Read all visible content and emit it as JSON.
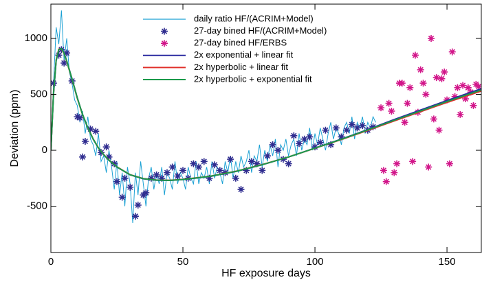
{
  "chart_data": {
    "type": "line",
    "x_label": "HF exposure days",
    "y_label": "Deviation (ppm)",
    "xlim": [
      0,
      163
    ],
    "ylim": [
      -914,
      1307
    ],
    "xticks": [
      0,
      50,
      100,
      150
    ],
    "yticks": [
      -500,
      0,
      500,
      1000
    ],
    "legend": "upper-center",
    "series": [
      {
        "name": "daily ratio HF/(ACRIM+Model)",
        "kind": "line",
        "color": "#1ba1d4",
        "x": [
          0,
          1,
          2,
          3,
          4,
          5,
          6,
          7,
          8,
          9,
          10,
          11,
          12,
          13,
          14,
          15,
          16,
          17,
          18,
          19,
          20,
          21,
          22,
          23,
          24,
          25,
          26,
          27,
          28,
          29,
          30,
          31,
          32,
          33,
          34,
          35,
          36,
          37,
          38,
          39,
          40,
          41,
          42,
          43,
          44,
          45,
          46,
          47,
          48,
          49,
          50,
          51,
          52,
          53,
          54,
          55,
          56,
          57,
          58,
          59,
          60,
          61,
          62,
          63,
          64,
          65,
          66,
          67,
          68,
          69,
          70,
          71,
          72,
          73,
          74,
          75,
          76,
          77,
          78,
          79,
          80,
          81,
          82,
          83,
          84,
          85,
          86,
          87,
          88,
          89,
          90,
          91,
          92,
          93,
          94,
          95,
          96,
          97,
          98,
          99,
          100,
          101,
          102,
          103,
          104,
          105,
          106,
          107,
          108,
          109,
          110,
          111,
          112,
          113,
          114,
          115,
          116,
          117,
          118,
          119,
          120,
          121,
          122,
          123
        ],
        "values": [
          0,
          600,
          1100,
          950,
          1250,
          800,
          1000,
          700,
          600,
          450,
          400,
          250,
          350,
          150,
          300,
          100,
          50,
          -50,
          150,
          -100,
          -50,
          -200,
          0,
          -150,
          -350,
          -100,
          -400,
          -200,
          -500,
          -150,
          -300,
          -650,
          -200,
          -400,
          -100,
          -300,
          -500,
          -250,
          -150,
          -350,
          -200,
          -300,
          -150,
          -400,
          -200,
          -250,
          -350,
          -100,
          -300,
          -200,
          -250,
          -350,
          -150,
          -250,
          -300,
          -100,
          -300,
          -200,
          -250,
          -150,
          -300,
          -100,
          -250,
          -150,
          -200,
          -300,
          -100,
          -200,
          -50,
          -250,
          -100,
          -200,
          -50,
          -150,
          -100,
          0,
          -200,
          -50,
          -100,
          50,
          -150,
          0,
          -100,
          50,
          -50,
          100,
          -150,
          50,
          0,
          100,
          -50,
          50,
          100,
          -50,
          150,
          0,
          100,
          50,
          200,
          0,
          150,
          50,
          200,
          100,
          0,
          150,
          250,
          100,
          200,
          150,
          50,
          200,
          250,
          150,
          300,
          100,
          250,
          200,
          300,
          150,
          250,
          200,
          300,
          250
        ]
      },
      {
        "name": "27-day bined HF/(ACRIM+Model)",
        "kind": "scatter",
        "color": "#2f2c8f",
        "x": [
          1,
          3,
          4,
          5,
          6,
          8,
          10,
          11,
          12,
          13,
          15,
          17,
          19,
          21,
          22,
          24,
          25,
          27,
          28,
          30,
          32,
          33,
          35,
          36,
          38,
          40,
          42,
          44,
          46,
          48,
          50,
          52,
          54,
          56,
          58,
          60,
          62,
          64,
          66,
          68,
          70,
          72,
          74,
          76,
          78,
          80,
          82,
          84,
          86,
          88,
          90,
          92,
          94,
          96,
          98,
          100,
          102,
          104,
          106,
          108,
          110,
          112,
          114,
          116,
          118,
          120,
          122
        ],
        "values": [
          600,
          850,
          900,
          780,
          870,
          620,
          300,
          290,
          -60,
          80,
          190,
          170,
          -20,
          30,
          -60,
          -120,
          -280,
          -420,
          -250,
          -330,
          -590,
          -490,
          -400,
          -380,
          -250,
          -220,
          -250,
          -200,
          -150,
          -230,
          -180,
          -250,
          -120,
          -150,
          -100,
          -250,
          -130,
          -180,
          -200,
          -80,
          -250,
          -350,
          -180,
          -100,
          -120,
          -180,
          -50,
          50,
          0,
          -80,
          -120,
          130,
          60,
          100,
          120,
          30,
          70,
          180,
          50,
          200,
          120,
          180,
          230,
          200,
          220,
          180,
          210
        ]
      },
      {
        "name": "27-day bined HF/ERBS",
        "kind": "scatter",
        "color": "#d2168a",
        "x": [
          125,
          126,
          127,
          128,
          129,
          130,
          131,
          132,
          133,
          134,
          135,
          136,
          137,
          138,
          139,
          140,
          141,
          142,
          143,
          144,
          145,
          146,
          147,
          148,
          149,
          150,
          151,
          152,
          153,
          154,
          155,
          156,
          157,
          158,
          159,
          160,
          161,
          162
        ],
        "values": [
          380,
          -180,
          -280,
          420,
          350,
          -200,
          -120,
          600,
          600,
          250,
          420,
          560,
          -100,
          850,
          340,
          720,
          600,
          500,
          -150,
          1000,
          280,
          650,
          180,
          640,
          700,
          450,
          -120,
          880,
          480,
          560,
          320,
          580,
          460,
          560,
          520,
          400,
          590,
          570
        ]
      },
      {
        "name": "2x exponential + linear fit",
        "kind": "line",
        "color": "#2a2aa0",
        "x": [
          0,
          1,
          2,
          3,
          4,
          5,
          6,
          8,
          10,
          12,
          14,
          16,
          18,
          20,
          22,
          25,
          30,
          35,
          40,
          45,
          50,
          60,
          70,
          80,
          90,
          100,
          110,
          120,
          130,
          140,
          150,
          163
        ],
        "values": [
          0,
          500,
          800,
          900,
          910,
          870,
          800,
          640,
          470,
          320,
          200,
          100,
          20,
          -40,
          -90,
          -150,
          -220,
          -255,
          -268,
          -270,
          -262,
          -235,
          -190,
          -130,
          -60,
          20,
          100,
          185,
          275,
          360,
          445,
          550
        ]
      },
      {
        "name": "2x hyperbolic + linear fit",
        "kind": "line",
        "color": "#e0302a",
        "x": [
          0,
          1,
          2,
          3,
          4,
          5,
          6,
          8,
          10,
          12,
          14,
          16,
          18,
          20,
          22,
          25,
          30,
          35,
          40,
          45,
          50,
          60,
          70,
          80,
          90,
          100,
          110,
          120,
          130,
          140,
          150,
          163
        ],
        "values": [
          0,
          510,
          810,
          905,
          905,
          865,
          795,
          635,
          465,
          318,
          200,
          102,
          22,
          -38,
          -88,
          -148,
          -218,
          -253,
          -266,
          -268,
          -260,
          -233,
          -188,
          -128,
          -60,
          18,
          96,
          178,
          262,
          345,
          428,
          530
        ]
      },
      {
        "name": "2x hyperbolic + exponential fit",
        "kind": "line",
        "color": "#1a9a4a",
        "x": [
          0,
          1,
          2,
          3,
          4,
          5,
          6,
          8,
          10,
          12,
          14,
          16,
          18,
          20,
          22,
          25,
          30,
          35,
          40,
          45,
          50,
          60,
          70,
          80,
          90,
          100,
          110,
          120,
          130,
          140,
          150,
          163
        ],
        "values": [
          0,
          505,
          805,
          902,
          908,
          868,
          798,
          638,
          468,
          320,
          201,
          101,
          21,
          -39,
          -89,
          -149,
          -219,
          -254,
          -267,
          -269,
          -261,
          -234,
          -189,
          -129,
          -60,
          19,
          98,
          182,
          268,
          352,
          436,
          540
        ]
      }
    ]
  }
}
